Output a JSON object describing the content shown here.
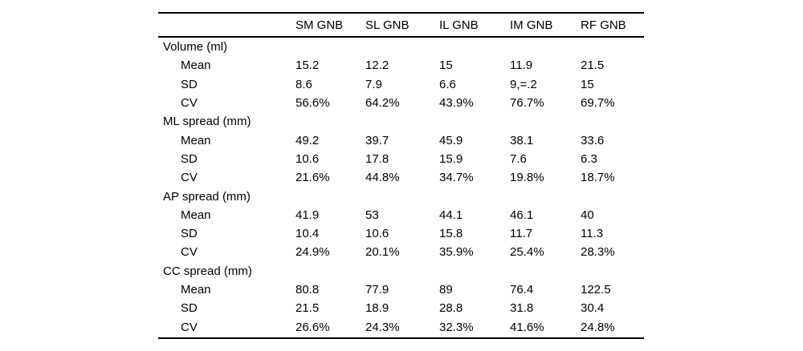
{
  "page": {
    "background_color": "#ffffff",
    "text_color": "#000000",
    "rule_color": "#000000"
  },
  "table": {
    "header": [
      "SM GNB",
      "SL GNB",
      "IL GNB",
      "IM GNB",
      "RF GNB"
    ],
    "row_stat_labels": [
      "Mean",
      "SD",
      "CV"
    ],
    "sections": [
      {
        "label": "Volume (ml)",
        "rows": [
          {
            "label": "Mean",
            "values": [
              "15.2",
              "12.2",
              "15",
              "11.9",
              "21.5"
            ]
          },
          {
            "label": "SD",
            "values": [
              "8.6",
              "7.9",
              "6.6",
              "9,=.2",
              "15"
            ]
          },
          {
            "label": "CV",
            "values": [
              "56.6%",
              "64.2%",
              "43.9%",
              "76.7%",
              "69.7%"
            ]
          }
        ]
      },
      {
        "label": "ML spread (mm)",
        "rows": [
          {
            "label": "Mean",
            "values": [
              "49.2",
              "39.7",
              "45.9",
              "38.1",
              "33.6"
            ]
          },
          {
            "label": "SD",
            "values": [
              "10.6",
              "17.8",
              "15.9",
              "7.6",
              "6.3"
            ]
          },
          {
            "label": "CV",
            "values": [
              "21.6%",
              "44.8%",
              "34.7%",
              "19.8%",
              "18.7%"
            ]
          }
        ]
      },
      {
        "label": "AP spread (mm)",
        "rows": [
          {
            "label": "Mean",
            "values": [
              "41.9",
              "53",
              "44.1",
              "46.1",
              "40"
            ]
          },
          {
            "label": "SD",
            "values": [
              "10.4",
              "10.6",
              "15.8",
              "11.7",
              "11.3"
            ]
          },
          {
            "label": "CV",
            "values": [
              "24.9%",
              "20.1%",
              "35.9%",
              "25.4%",
              "28.3%"
            ]
          }
        ]
      },
      {
        "label": "CC spread (mm)",
        "rows": [
          {
            "label": "Mean",
            "values": [
              "80.8",
              "77.9",
              "89",
              "76.4",
              "122.5"
            ]
          },
          {
            "label": "SD",
            "values": [
              "21.5",
              "18.9",
              "28.8",
              "31.8",
              "30.4"
            ]
          },
          {
            "label": "CV",
            "values": [
              "26.6%",
              "24.3%",
              "32.3%",
              "41.6%",
              "24.8%"
            ]
          }
        ]
      }
    ]
  }
}
